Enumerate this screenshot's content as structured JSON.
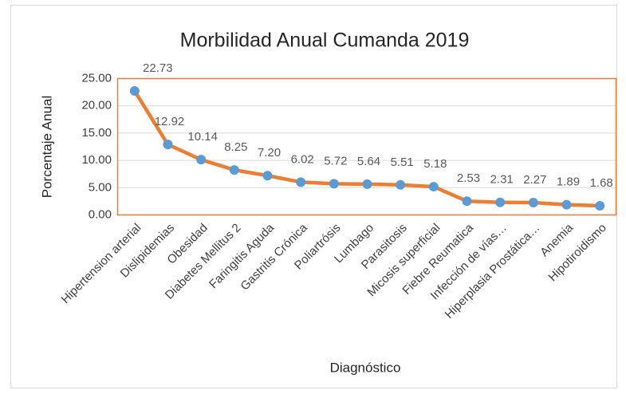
{
  "chart_data": {
    "type": "line",
    "title": "Morbilidad Anual Cumanda 2019",
    "x_label": "Diagnóstico",
    "y_label": "Porcentaje Anual",
    "categories": [
      "Hipertension arterial",
      "Dislipidemias",
      "Obesidad",
      "Diabetes Mellitus 2",
      "Faringitis Aguda",
      "Gastritis Crónica",
      "Poliartrósis",
      "Lumbago",
      "Parasitosis",
      "Micosis superficial",
      "Fiebre Reumatica",
      "Infección de vías…",
      "Hiperplasia Prostática…",
      "Anemia",
      "Hipotiroidismo"
    ],
    "series": [
      {
        "name": "Porcentaje Anual",
        "color": "#ED7D31",
        "marker_color": "#5B9BD5",
        "values": [
          22.73,
          12.92,
          10.14,
          8.25,
          7.2,
          6.02,
          5.72,
          5.64,
          5.51,
          5.18,
          2.53,
          2.31,
          2.27,
          1.89,
          1.68
        ],
        "value_labels": [
          "22.73",
          "12.92",
          "10.14",
          "8.25",
          "7.20",
          "6.02",
          "5.72",
          "5.64",
          "5.51",
          "5.18",
          "2.53",
          "2.31",
          "2.27",
          "1.89",
          "1.68"
        ]
      }
    ],
    "ylim": [
      0,
      25
    ],
    "yticks": [
      {
        "value": 0,
        "label": "0.00"
      },
      {
        "value": 5,
        "label": "5.00"
      },
      {
        "value": 10,
        "label": "10.00"
      },
      {
        "value": 15,
        "label": "15.00"
      },
      {
        "value": 20,
        "label": "20.00"
      },
      {
        "value": 25,
        "label": "25.00"
      }
    ],
    "grid": true
  }
}
